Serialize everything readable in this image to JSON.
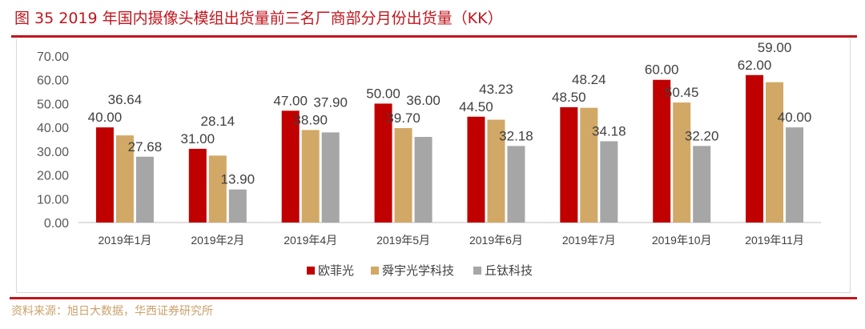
{
  "title": "图 35   2019 年国内摄像头模组出货量前三名厂商部分月份出货量（KK）",
  "source": "资料来源：旭日大数据，华西证券研究所",
  "chart_data": {
    "type": "bar",
    "categories": [
      "2019年1月",
      "2019年2月",
      "2019年4月",
      "2019年5月",
      "2019年6月",
      "2019年7月",
      "2019年10月",
      "2019年11月"
    ],
    "series": [
      {
        "name": "欧菲光",
        "color": "#c00000",
        "values": [
          40.0,
          31.0,
          47.0,
          50.0,
          44.5,
          48.5,
          60.0,
          62.0
        ]
      },
      {
        "name": "舜宇光学科技",
        "color": "#d1a866",
        "values": [
          36.64,
          28.14,
          38.9,
          39.7,
          43.23,
          48.24,
          50.45,
          59.0
        ]
      },
      {
        "name": "丘钛科技",
        "color": "#a6a6a6",
        "values": [
          27.68,
          13.9,
          37.9,
          36.0,
          32.18,
          34.18,
          32.2,
          40.0
        ]
      }
    ],
    "yticks": [
      "0.00",
      "10.00",
      "20.00",
      "30.00",
      "40.00",
      "50.00",
      "60.00",
      "70.00"
    ],
    "ylim": [
      0,
      70
    ],
    "grid": false,
    "legend": "bottom"
  }
}
